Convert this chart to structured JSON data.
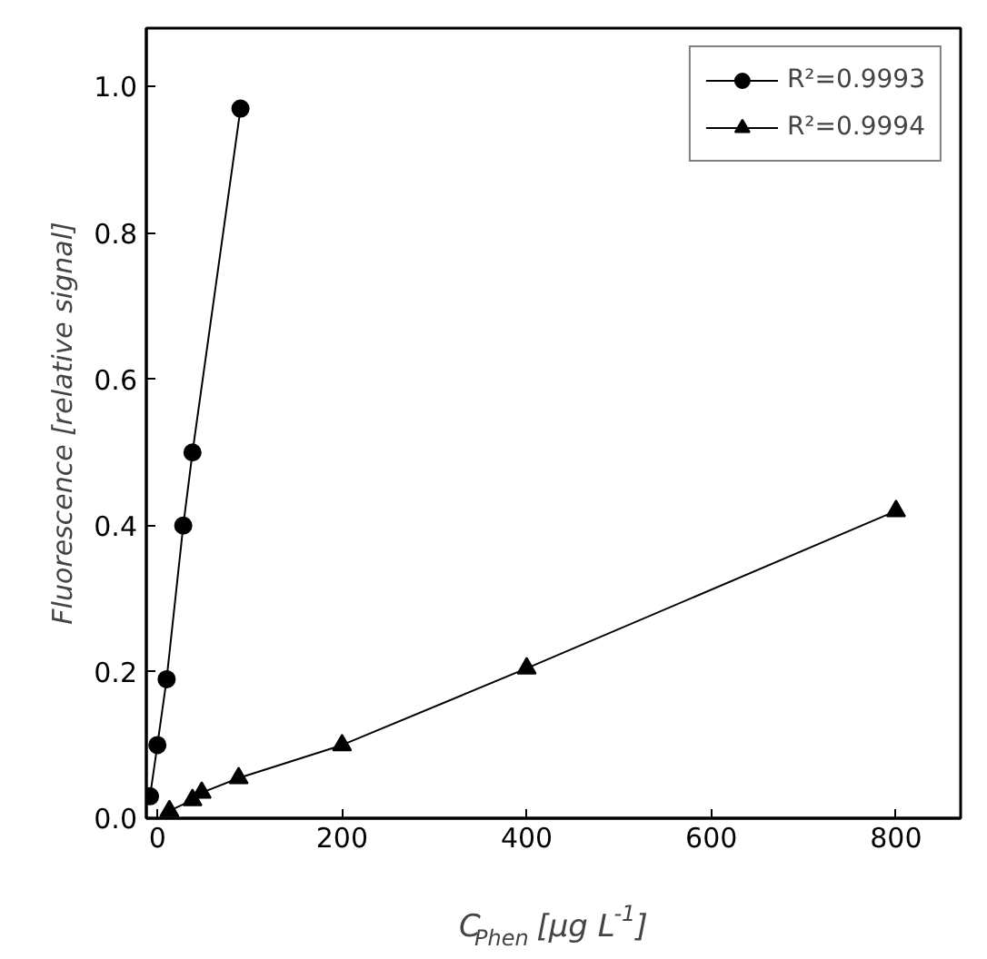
{
  "chart_data": {
    "type": "line",
    "xlabel": "C$_{Phen}$ [µg L$^{-1}$]",
    "ylabel": "Fluorescence [relative signal]",
    "xlim": [
      -12,
      870
    ],
    "ylim": [
      0,
      1.08
    ],
    "xticks": [
      0,
      200,
      400,
      600,
      800
    ],
    "yticks": [
      {
        "value": 0,
        "label": "0.0"
      },
      {
        "value": 0.2,
        "label": "0.2"
      },
      {
        "value": 0.4,
        "label": "0.4"
      },
      {
        "value": 0.6,
        "label": "0.6"
      },
      {
        "value": 0.8,
        "label": "0.8"
      },
      {
        "value": 1.0,
        "label": "1.0"
      }
    ],
    "grid": false,
    "legend": "top right",
    "line_style": "solid",
    "series": [
      {
        "name": "R²=0.9993",
        "color": "#000000",
        "marker": "circle",
        "x": [
          -8,
          0,
          10,
          28,
          38,
          90
        ],
        "values": [
          0.03,
          0.1,
          0.19,
          0.4,
          0.5,
          0.97
        ]
      },
      {
        "name": "R²=0.9994",
        "color": "#000000",
        "marker": "triangle",
        "x": [
          13,
          38,
          48,
          88,
          200,
          400,
          800
        ],
        "values": [
          0.01,
          0.025,
          0.035,
          0.055,
          0.1,
          0.205,
          0.42
        ]
      }
    ]
  }
}
